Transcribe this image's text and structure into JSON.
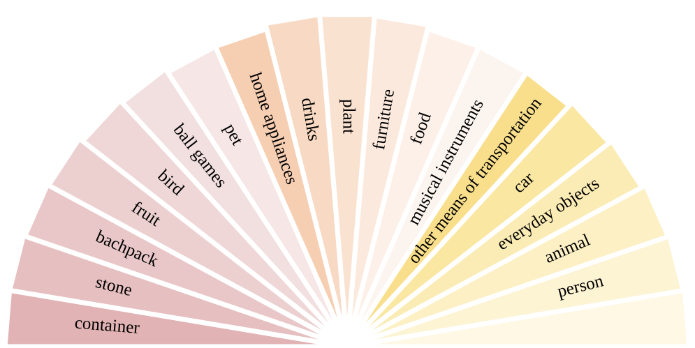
{
  "wedges": [
    {
      "label": "container",
      "color": "#e2b3b4"
    },
    {
      "label": "stone",
      "color": "#e6bfc0"
    },
    {
      "label": "bachpack",
      "color": "#e9c7c8"
    },
    {
      "label": "fruit",
      "color": "#ecd0d0"
    },
    {
      "label": "bird",
      "color": "#efd7d7"
    },
    {
      "label": "ball games",
      "color": "#f2e0e0"
    },
    {
      "label": "pet",
      "color": "#f6e6e6"
    },
    {
      "label": "home appliances",
      "color": "#f6ceb2"
    },
    {
      "label": "drinks",
      "color": "#f8d9c3"
    },
    {
      "label": "plant",
      "color": "#fae2d1"
    },
    {
      "label": "furniture",
      "color": "#fbe9dd"
    },
    {
      "label": "food",
      "color": "#fdf0e8"
    },
    {
      "label": "musical instruments",
      "color": "#fcf4ef"
    },
    {
      "label": "other means of transportation",
      "color": "#f9df8c"
    },
    {
      "label": "car",
      "color": "#fae7a2"
    },
    {
      "label": "everyday objects",
      "color": "#fbecb5"
    },
    {
      "label": "animal",
      "color": "#fcf0c4"
    },
    {
      "label": "person",
      "color": "#fdf4d4"
    },
    {
      "label": "",
      "color": "#fef8e5"
    }
  ]
}
